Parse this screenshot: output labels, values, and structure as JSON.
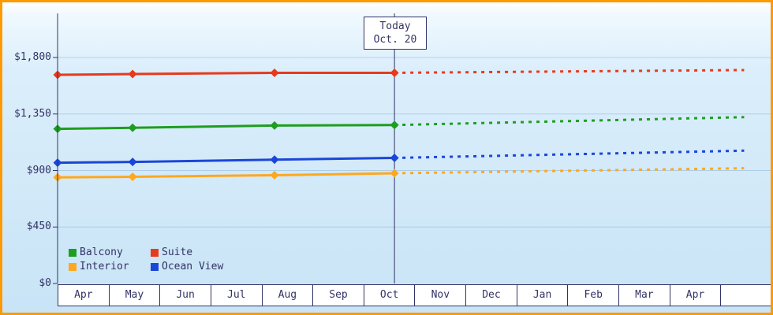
{
  "page": {
    "border_color": "#ff9900",
    "text_color": "#333366",
    "plot_background_top": "#f0f9ff",
    "plot_background_bottom": "#c8e4f6"
  },
  "chart_data": {
    "type": "line",
    "title": "",
    "xlabel": "",
    "ylabel": "",
    "grid": "horizontal",
    "legend_position": "bottom-left-inside",
    "x_axis": {
      "categories": [
        "Apr",
        "May",
        "Jun",
        "Jul",
        "Aug",
        "Sep",
        "Oct",
        "Nov",
        "Dec",
        "Jan",
        "Feb",
        "Mar",
        "Apr",
        ""
      ]
    },
    "y_axis": {
      "labels": [
        "$0",
        "$450",
        "$900",
        "$1,350",
        "$1,800"
      ],
      "values": [
        0,
        450,
        900,
        1350,
        1800
      ],
      "ylim": [
        0,
        2160
      ]
    },
    "today": {
      "line1": "Today",
      "line2": "Oct. 20",
      "month_position": 6.6
    },
    "series": [
      {
        "id": "suite",
        "name": "Suite",
        "color": "#e8391d",
        "history": {
          "x": [
            0,
            1.47,
            4.25,
            6.6
          ],
          "y": [
            1662,
            1668,
            1678,
            1678
          ]
        },
        "forecast": {
          "x": [
            6.6,
            13.45
          ],
          "y": [
            1678,
            1700
          ]
        }
      },
      {
        "id": "balcony",
        "name": "Balcony",
        "color": "#1e9e1e",
        "history": {
          "x": [
            0,
            1.47,
            4.25,
            6.6
          ],
          "y": [
            1232,
            1240,
            1258,
            1262
          ]
        },
        "forecast": {
          "x": [
            6.6,
            13.45
          ],
          "y": [
            1262,
            1325
          ]
        }
      },
      {
        "id": "ocean-view",
        "name": "Ocean View",
        "color": "#1b46d8",
        "history": {
          "x": [
            0,
            1.47,
            4.25,
            6.6
          ],
          "y": [
            962,
            968,
            986,
            1000
          ]
        },
        "forecast": {
          "x": [
            6.6,
            13.45
          ],
          "y": [
            1000,
            1058
          ]
        }
      },
      {
        "id": "interior",
        "name": "Interior",
        "color": "#ffa81e",
        "history": {
          "x": [
            0,
            1.47,
            4.25,
            6.6
          ],
          "y": [
            845,
            850,
            862,
            878
          ]
        },
        "forecast": {
          "x": [
            6.6,
            13.45
          ],
          "y": [
            878,
            918
          ]
        }
      }
    ],
    "legend": [
      {
        "label": "Balcony",
        "color": "#1e9e1e"
      },
      {
        "label": "Suite",
        "color": "#e8391d"
      },
      {
        "label": "Interior",
        "color": "#ffa81e"
      },
      {
        "label": "Ocean View",
        "color": "#1b46d8"
      }
    ]
  }
}
